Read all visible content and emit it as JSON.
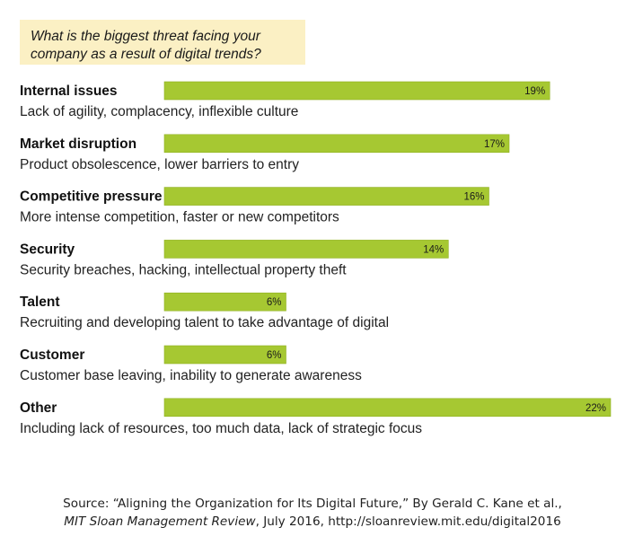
{
  "question": {
    "line1": "What is the biggest threat facing your",
    "line2": "company as a result of digital trends?"
  },
  "colors": {
    "bar": "#a6c832",
    "bar_edge": "#8fb020",
    "question_bg": "#fbf0c4"
  },
  "chart_data": {
    "type": "bar",
    "orientation": "horizontal",
    "title": "What is the biggest threat facing your company as a result of digital trends?",
    "categories": [
      "Internal issues",
      "Market disruption",
      "Competitive pressure",
      "Security",
      "Talent",
      "Customer",
      "Other"
    ],
    "descriptions": [
      "Lack of agility, complacency, inflexible culture",
      "Product obsolescence, lower barriers to entry",
      "More intense competition, faster or new competitors",
      "Security breaches, hacking, intellectual property theft",
      "Recruiting and developing talent to take advantage of digital",
      "Customer base leaving, inability to generate awareness",
      "Including lack of resources, too much data, lack of strategic focus"
    ],
    "values": [
      19,
      17,
      16,
      14,
      6,
      6,
      22
    ],
    "value_labels": [
      "19%",
      "17%",
      "16%",
      "14%",
      "6%",
      "6%",
      "22%"
    ],
    "unit": "%",
    "xlim": [
      0,
      22
    ],
    "grid": false,
    "legend": "none"
  },
  "source": {
    "prefix": "Source: “Aligning the Organization for Its Digital Future,” By Gerald C. Kane et al.,",
    "journal": "MIT Sloan Management Review",
    "suffix": ", July 2016, http://sloanreview.mit.edu/digital2016"
  }
}
